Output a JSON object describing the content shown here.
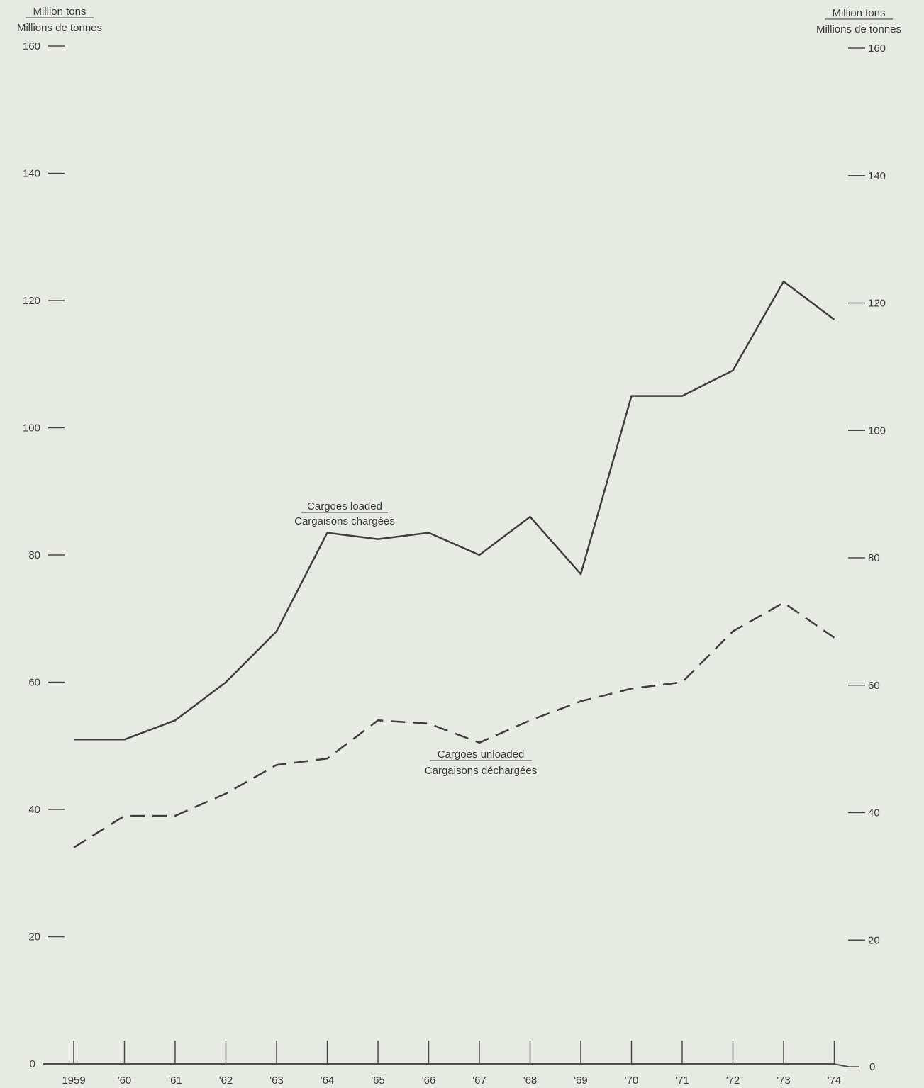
{
  "chart_data": {
    "type": "line",
    "left_axis": {
      "unit_en": "Million tons",
      "unit_fr": "Millions de tonnes"
    },
    "right_axis": {
      "unit_en": "Million tons",
      "unit_fr": "Millions de tonnes"
    },
    "ylim": [
      0,
      160
    ],
    "y_ticks": [
      0,
      20,
      40,
      60,
      80,
      100,
      120,
      140,
      160
    ],
    "y_tick_labels": [
      "0",
      "20",
      "40",
      "60",
      "80",
      "100",
      "120",
      "140",
      "160"
    ],
    "categories": [
      "1959",
      "'60",
      "'61",
      "'62",
      "'63",
      "'64",
      "'65",
      "'66",
      "'67",
      "'68",
      "'69",
      "'70",
      "'71",
      "'72",
      "'73",
      "'74"
    ],
    "series": [
      {
        "name": "Cargoes loaded",
        "name_fr": "Cargaisons chargées",
        "style": "solid",
        "values": [
          51,
          51,
          54,
          60,
          68,
          83.5,
          82.5,
          83.5,
          80,
          86,
          77,
          105,
          105,
          109,
          123,
          117
        ]
      },
      {
        "name": "Cargoes unloaded",
        "name_fr": "Cargaisons déchargées",
        "style": "dashed",
        "values": [
          34,
          39,
          39,
          42.5,
          47,
          48,
          54,
          53.5,
          50.5,
          54,
          57,
          59,
          60,
          68,
          72.5,
          67
        ]
      }
    ],
    "grid": false,
    "legend": "inline labels"
  }
}
